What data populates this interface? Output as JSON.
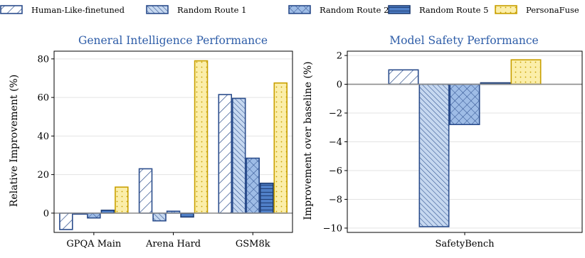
{
  "legend": [
    {
      "name": "Human-Like-finetuned",
      "pattern": "hatch-diag"
    },
    {
      "name": "Random Route 1",
      "pattern": "hatch-dense"
    },
    {
      "name": "Random Route 2",
      "pattern": "hatch-cross"
    },
    {
      "name": "Random Route 5",
      "pattern": "hatch-horiz"
    },
    {
      "name": "PersonaFuse",
      "pattern": "dots"
    }
  ],
  "colors": {
    "title": "#2e5da8",
    "edge": "#2b4d8c",
    "fill_light": "#c6d8f0",
    "fill_mid": "#9ebce6",
    "fill_dark": "#4f7fc7",
    "persona_edge": "#c9a000",
    "persona_fill": "#fbeeaa",
    "zero_line": "#8c8c8c"
  },
  "chart_data": [
    {
      "type": "bar",
      "title": "General Intelligence Performance",
      "xlabel": "",
      "ylabel": "Relative Improvement  (%)",
      "categories": [
        "GPQA Main",
        "Arena Hard",
        "GSM8k"
      ],
      "ylim": [
        -10,
        84
      ],
      "yticks": [
        0,
        20,
        40,
        60,
        80
      ],
      "grid": true,
      "series": [
        {
          "name": "Human-Like-finetuned",
          "values": [
            -8.5,
            23,
            61.5
          ]
        },
        {
          "name": "Random Route 1",
          "values": [
            -0.5,
            -4,
            59.5
          ]
        },
        {
          "name": "Random Route 2",
          "values": [
            -2.5,
            1,
            28.5
          ]
        },
        {
          "name": "Random Route 5",
          "values": [
            1.5,
            -2,
            15.5
          ]
        },
        {
          "name": "PersonaFuse",
          "values": [
            13.5,
            79,
            67.5
          ]
        }
      ]
    },
    {
      "type": "bar",
      "title": "Model Safety Performance",
      "xlabel": "",
      "ylabel": "Improvement over baseline (%)",
      "categories": [
        "SafetyBench"
      ],
      "ylim": [
        -10.3,
        2.3
      ],
      "yticks": [
        2,
        0,
        -2,
        -4,
        -6,
        -8,
        -10
      ],
      "grid": true,
      "series": [
        {
          "name": "Human-Like-finetuned",
          "values": [
            1.0
          ]
        },
        {
          "name": "Random Route 1",
          "values": [
            -9.9
          ]
        },
        {
          "name": "Random Route 2",
          "values": [
            -2.8
          ]
        },
        {
          "name": "Random Route 5",
          "values": [
            0.1
          ]
        },
        {
          "name": "PersonaFuse",
          "values": [
            1.7
          ]
        }
      ]
    }
  ]
}
